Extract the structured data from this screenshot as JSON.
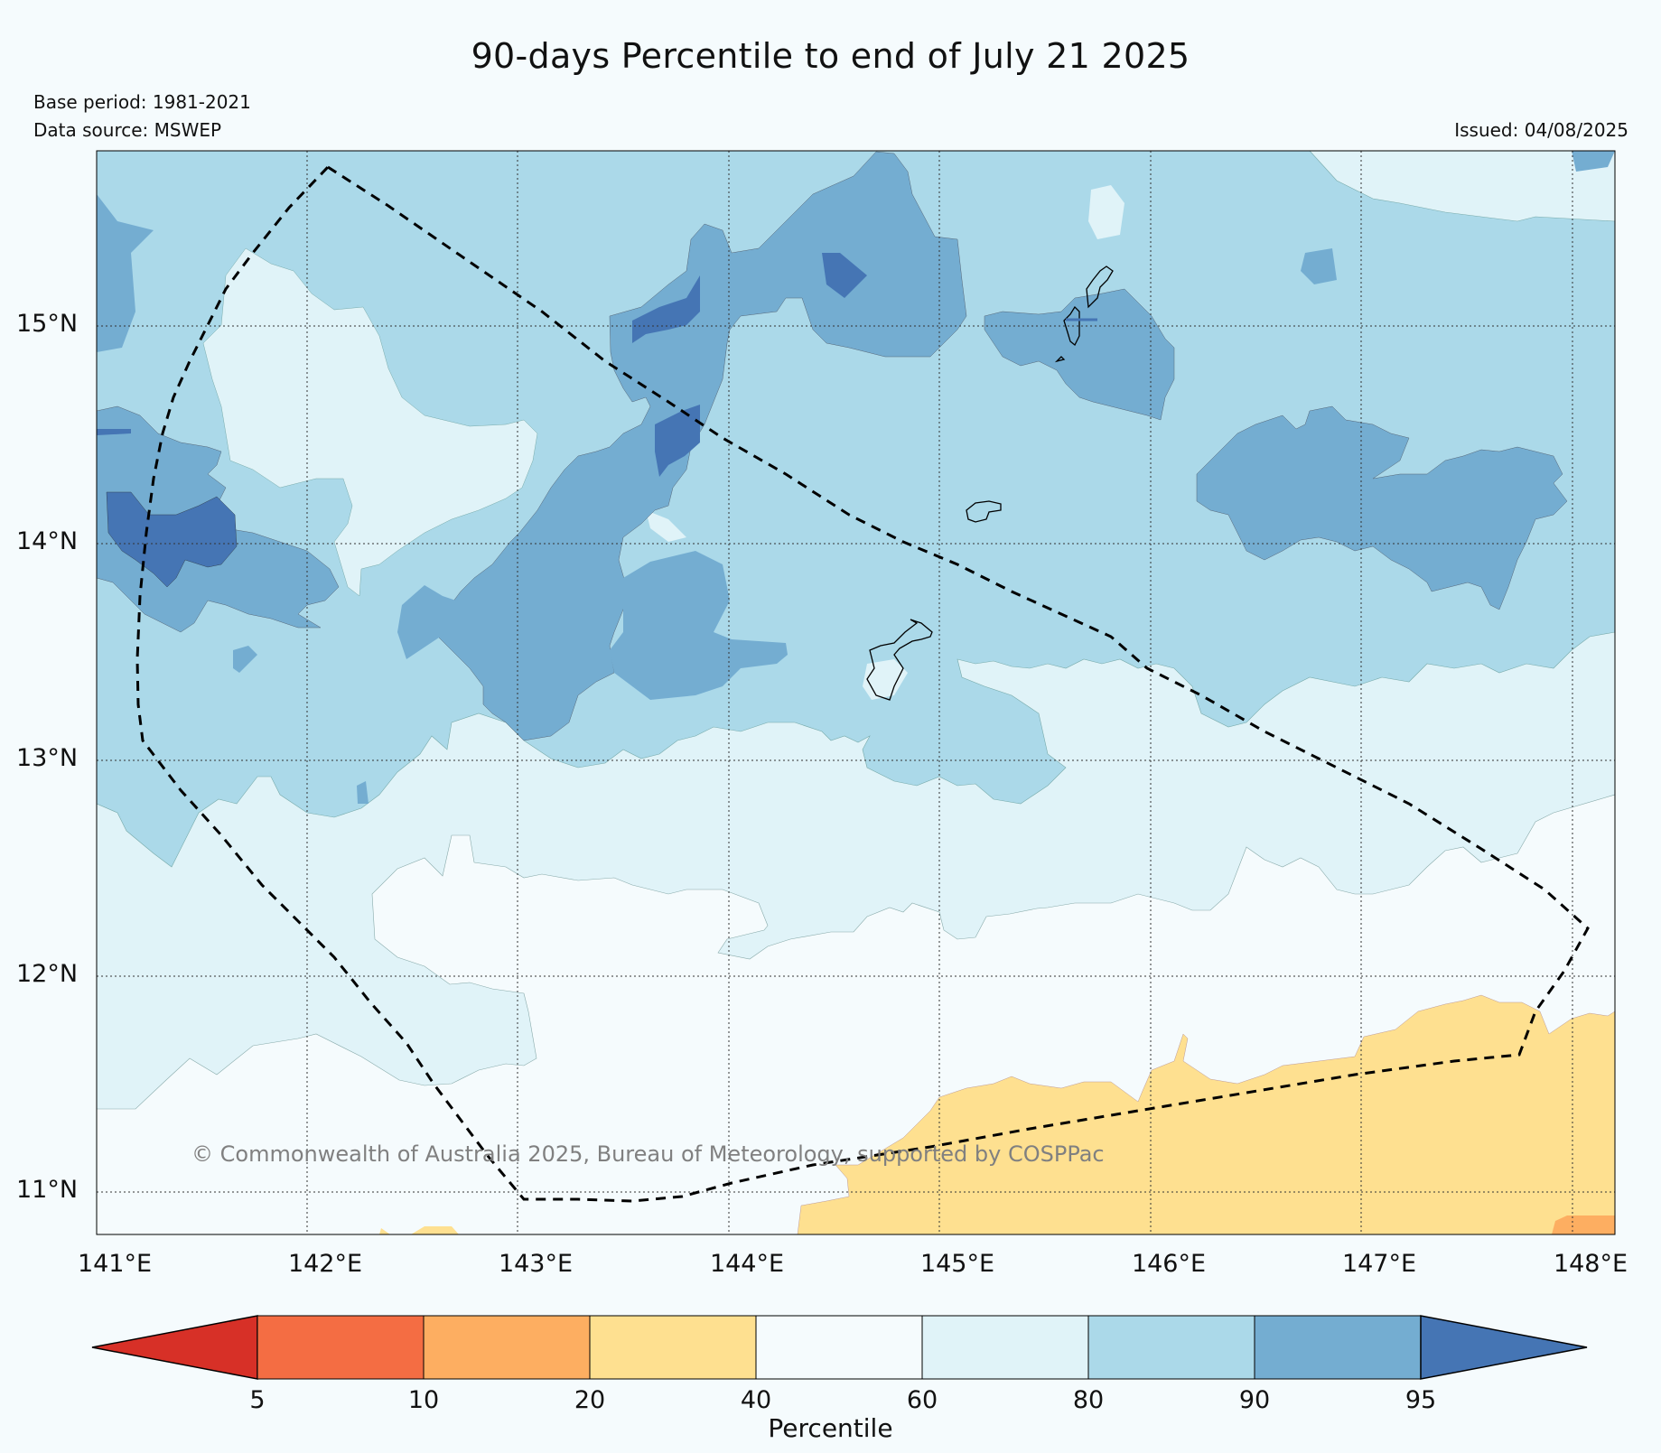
{
  "title": "90-days Percentile to end of July 21 2025",
  "base_period": "Base period: 1981-2021",
  "data_source": "Data source: MSWEP",
  "issued": "Issued: 04/08/2025",
  "credit": "© Commonwealth of Australia 2025, Bureau of Meteorology, supported by COSPPac",
  "map": {
    "lon_range": [
      141,
      148.2
    ],
    "lat_range": [
      10.8,
      15.8
    ],
    "lat_ticks": [
      "15°N",
      "14°N",
      "13°N",
      "12°N",
      "11°N"
    ],
    "lon_ticks": [
      "141°E",
      "142°E",
      "143°E",
      "144°E",
      "145°E",
      "146°E",
      "147°E",
      "148°E"
    ]
  },
  "colorbar": {
    "label": "Percentile",
    "ticks": [
      "5",
      "10",
      "20",
      "40",
      "60",
      "80",
      "90",
      "95"
    ],
    "colors": {
      "below_5": "#d73027",
      "5_10": "#f46d43",
      "10_20": "#fdae61",
      "20_40": "#fee090",
      "40_60": "#f5fbfd",
      "60_80": "#e0f3f8",
      "80_90": "#abd9e9",
      "90_95": "#74add1",
      "above_95": "#4575b4"
    }
  }
}
